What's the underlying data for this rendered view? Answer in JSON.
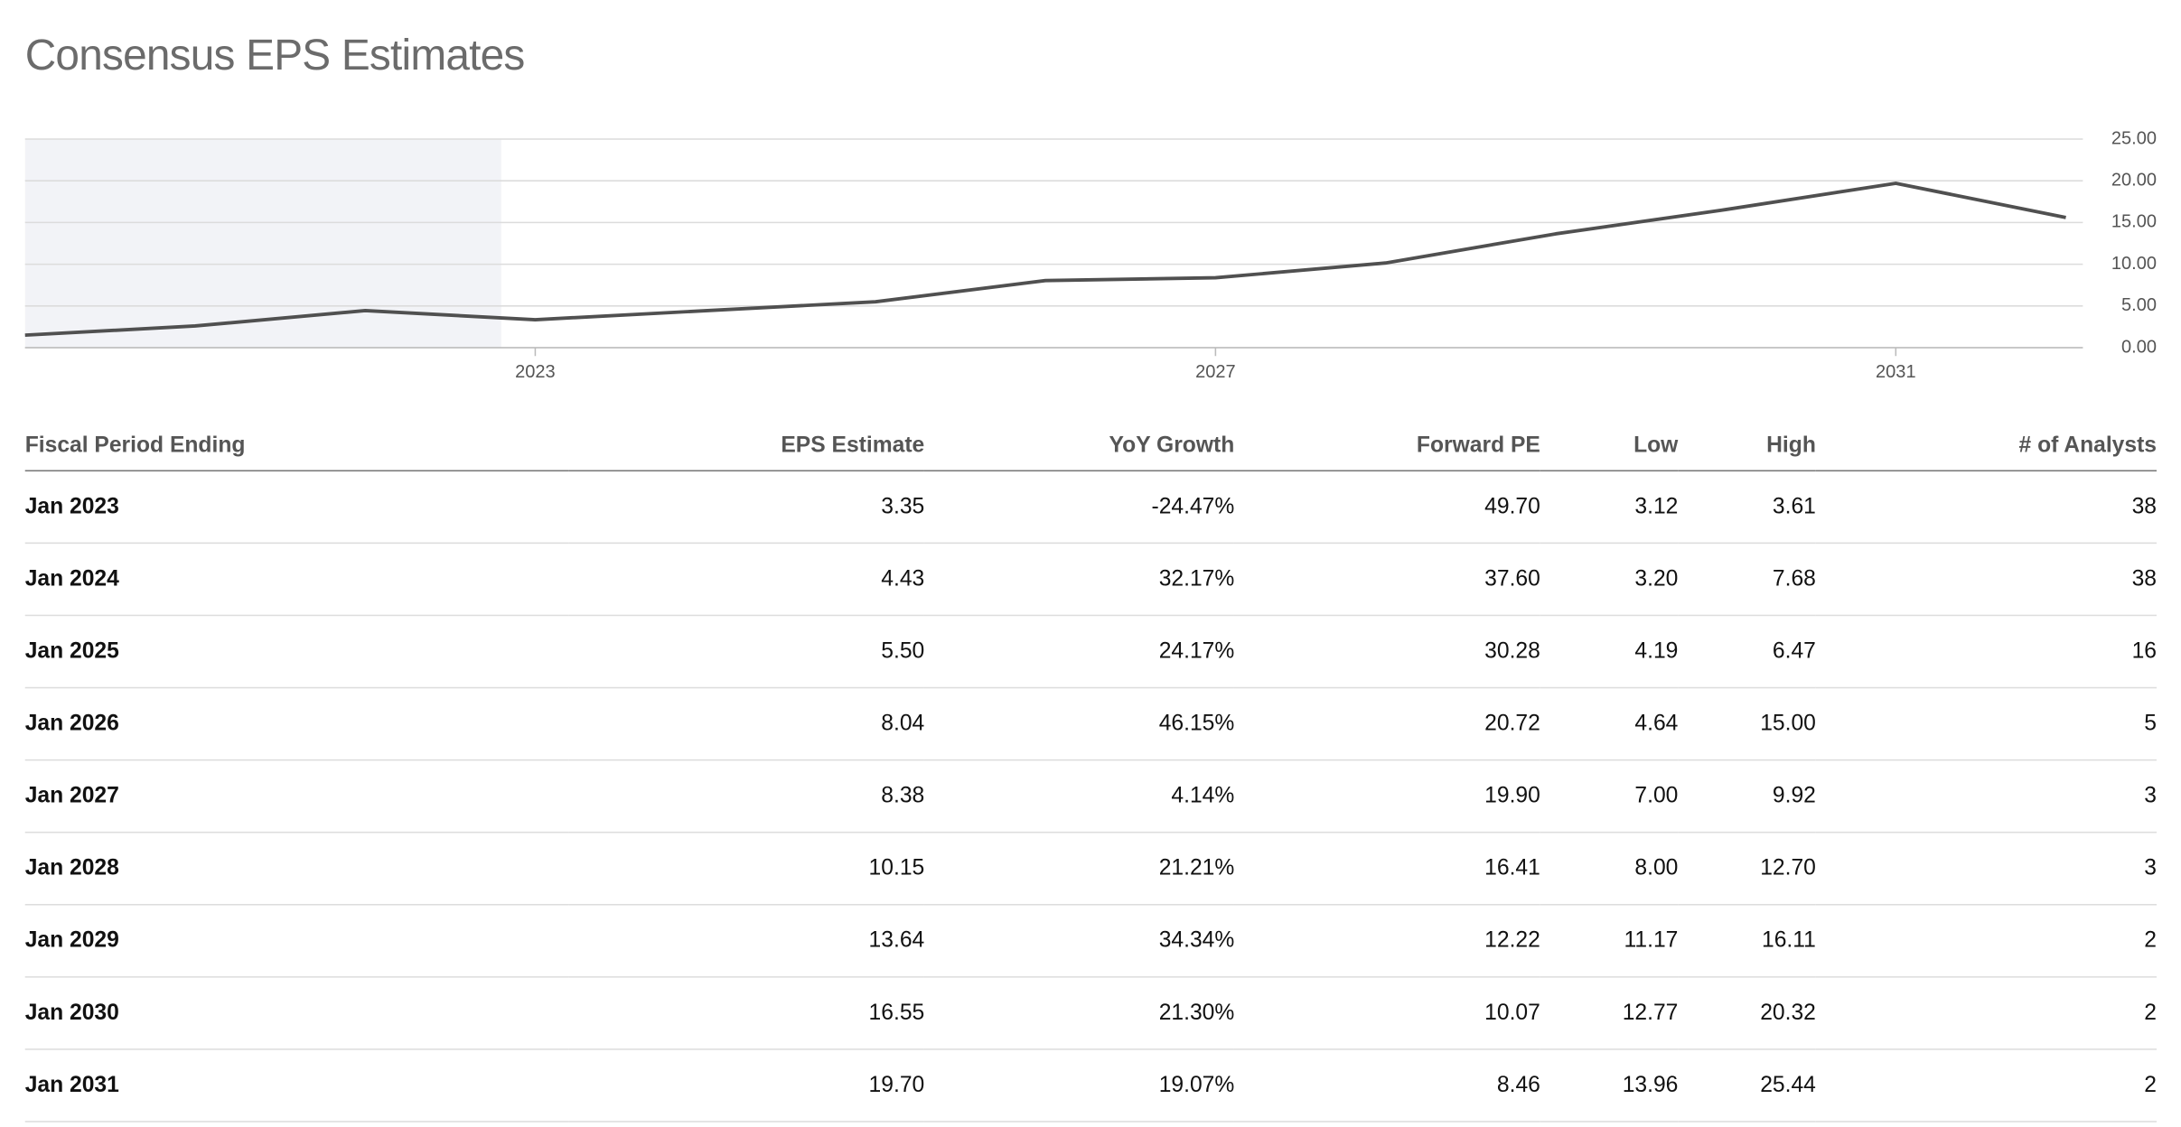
{
  "chart_data": {
    "type": "line",
    "title": "Consensus EPS Estimates",
    "x": [
      2020,
      2021,
      2022,
      2023,
      2024,
      2025,
      2026,
      2027,
      2028,
      2029,
      2030,
      2031,
      2032
    ],
    "series": [
      {
        "color": "#505050",
        "values": [
          1.5,
          2.6,
          4.44,
          3.35,
          4.43,
          5.5,
          8.04,
          8.38,
          10.15,
          13.64,
          16.55,
          19.7,
          15.6
        ]
      }
    ],
    "xlim": [
      2020,
      2032.1
    ],
    "xticks": [
      2023,
      2027,
      2031
    ],
    "ylim": [
      0,
      25
    ],
    "yticks": [
      {
        "value": 0,
        "label": "0.00"
      },
      {
        "value": 5,
        "label": "5.00"
      },
      {
        "value": 10,
        "label": "10.00"
      },
      {
        "value": 15,
        "label": "15.00"
      },
      {
        "value": 20,
        "label": "20.00"
      },
      {
        "value": 25,
        "label": "25.00"
      }
    ],
    "grid": true,
    "shaded_until": 2022.8
  },
  "table": {
    "columns": [
      "Fiscal Period Ending",
      "EPS Estimate",
      "YoY Growth",
      "Forward PE",
      "Low",
      "High",
      "# of Analysts"
    ],
    "rows": [
      [
        "Jan 2023",
        "3.35",
        "-24.47%",
        "49.70",
        "3.12",
        "3.61",
        "38"
      ],
      [
        "Jan 2024",
        "4.43",
        "32.17%",
        "37.60",
        "3.20",
        "7.68",
        "38"
      ],
      [
        "Jan 2025",
        "5.50",
        "24.17%",
        "30.28",
        "4.19",
        "6.47",
        "16"
      ],
      [
        "Jan 2026",
        "8.04",
        "46.15%",
        "20.72",
        "4.64",
        "15.00",
        "5"
      ],
      [
        "Jan 2027",
        "8.38",
        "4.14%",
        "19.90",
        "7.00",
        "9.92",
        "3"
      ],
      [
        "Jan 2028",
        "10.15",
        "21.21%",
        "16.41",
        "8.00",
        "12.70",
        "3"
      ],
      [
        "Jan 2029",
        "13.64",
        "34.34%",
        "12.22",
        "11.17",
        "16.11",
        "2"
      ],
      [
        "Jan 2030",
        "16.55",
        "21.30%",
        "10.07",
        "12.77",
        "20.32",
        "2"
      ],
      [
        "Jan 2031",
        "19.70",
        "19.07%",
        "8.46",
        "13.96",
        "25.44",
        "2"
      ]
    ]
  }
}
